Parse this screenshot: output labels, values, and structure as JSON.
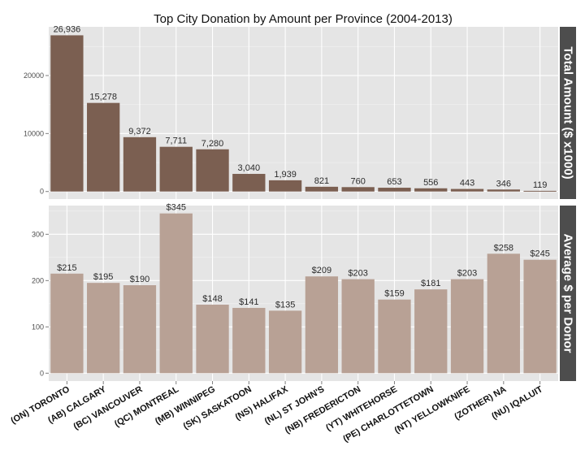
{
  "chart_data": {
    "type": "bar",
    "title": "Top City Donation by Amount per Province (2004-2013)",
    "categories": [
      "(ON) TORONTO",
      "(AB) CALGARY",
      "(BC) VANCOUVER",
      "(QC) MONTREAL",
      "(MB) WINNIPEG",
      "(SK) SASKATOON",
      "(NS) HALIFAX",
      "(NL) ST JOHN'S",
      "(NB) FREDERICTON",
      "(YT) WHITEHORSE",
      "(PE) CHARLOTTETOWN",
      "(NT) YELLOWKNIFE",
      "(ZOTHER) NA",
      "(NU) IQALUIT"
    ],
    "panels": [
      {
        "strip_label": "Total Amount ($ x1000)",
        "values": [
          26936,
          15278,
          9372,
          7711,
          7280,
          3040,
          1939,
          821,
          760,
          653,
          556,
          443,
          346,
          119
        ],
        "labels": [
          "26,936",
          "15,278",
          "9,372",
          "7,711",
          "7,280",
          "3,040",
          "1,939",
          "821",
          "760",
          "653",
          "556",
          "443",
          "346",
          "119"
        ],
        "ylim": [
          -1300,
          28400
        ],
        "yticks": [
          0,
          10000,
          20000
        ],
        "ytick_labels": [
          "0",
          "10000",
          "20000"
        ],
        "color": "#7b5f51"
      },
      {
        "strip_label": "Average $ per Donor",
        "values": [
          215,
          195,
          190,
          345,
          148,
          141,
          135,
          209,
          203,
          159,
          181,
          203,
          258,
          245
        ],
        "labels": [
          "$215",
          "$195",
          "$190",
          "$345",
          "$148",
          "$141",
          "$135",
          "$209",
          "$203",
          "$159",
          "$181",
          "$203",
          "$258",
          "$245"
        ],
        "ylim": [
          -17,
          362
        ],
        "yticks": [
          0,
          100,
          200,
          300
        ],
        "ytick_labels": [
          "0",
          "100",
          "200",
          "300"
        ],
        "color": "#b8a195"
      }
    ],
    "grid": true,
    "legend": "none",
    "facet_strip_position": "right"
  }
}
